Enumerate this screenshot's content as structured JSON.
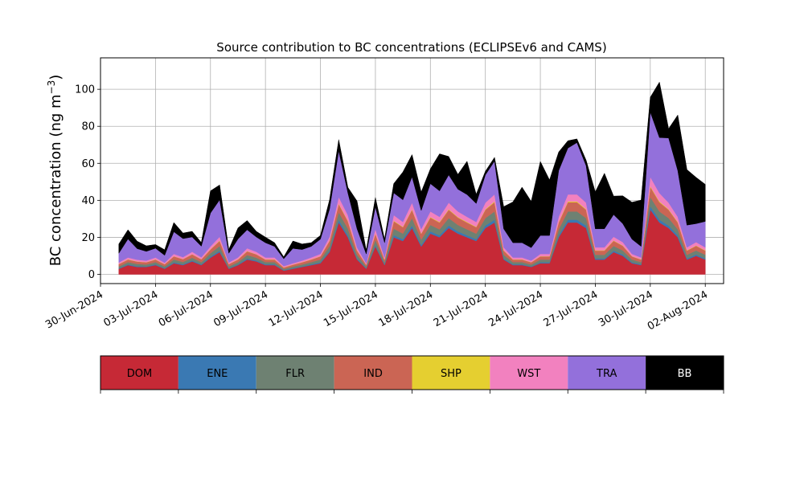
{
  "chart_data": {
    "type": "area",
    "stacked": true,
    "title": "Source contribution to BC concentrations (ECLIPSEv6 and CAMS)",
    "xlabel": "",
    "ylabel_text": "BC concentration (ng m",
    "ylabel_sup": "−3",
    "ylabel_close": ")",
    "ylim": [
      -5,
      117
    ],
    "yticks": [
      0,
      20,
      40,
      60,
      80,
      100
    ],
    "grid": true,
    "xlim": [
      "2024-06-30",
      "2024-08-03"
    ],
    "xticks": [
      "30-Jun-2024",
      "03-Jul-2024",
      "06-Jul-2024",
      "09-Jul-2024",
      "12-Jul-2024",
      "15-Jul-2024",
      "18-Jul-2024",
      "21-Jul-2024",
      "24-Jul-2024",
      "27-Jul-2024",
      "30-Jul-2024",
      "02-Aug-2024"
    ],
    "x": [
      "2024-07-01",
      "2024-07-01 12:00",
      "2024-07-02",
      "2024-07-02 12:00",
      "2024-07-03",
      "2024-07-03 12:00",
      "2024-07-04",
      "2024-07-04 12:00",
      "2024-07-05",
      "2024-07-05 12:00",
      "2024-07-06",
      "2024-07-06 12:00",
      "2024-07-07",
      "2024-07-07 12:00",
      "2024-07-08",
      "2024-07-08 12:00",
      "2024-07-09",
      "2024-07-09 12:00",
      "2024-07-10",
      "2024-07-10 12:00",
      "2024-07-11",
      "2024-07-11 12:00",
      "2024-07-12",
      "2024-07-12 12:00",
      "2024-07-13",
      "2024-07-13 12:00",
      "2024-07-14",
      "2024-07-14 12:00",
      "2024-07-15",
      "2024-07-15 12:00",
      "2024-07-16",
      "2024-07-16 12:00",
      "2024-07-17",
      "2024-07-17 12:00",
      "2024-07-18",
      "2024-07-18 12:00",
      "2024-07-19",
      "2024-07-19 12:00",
      "2024-07-20",
      "2024-07-20 12:00",
      "2024-07-21",
      "2024-07-21 12:00",
      "2024-07-22",
      "2024-07-22 12:00",
      "2024-07-23",
      "2024-07-23 12:00",
      "2024-07-24",
      "2024-07-24 12:00",
      "2024-07-25",
      "2024-07-25 12:00",
      "2024-07-26",
      "2024-07-26 12:00",
      "2024-07-27",
      "2024-07-27 12:00",
      "2024-07-28",
      "2024-07-28 12:00",
      "2024-07-29",
      "2024-07-29 12:00",
      "2024-07-30",
      "2024-07-30 12:00",
      "2024-07-31",
      "2024-07-31 12:00",
      "2024-08-01",
      "2024-08-01 12:00",
      "2024-08-02"
    ],
    "series": [
      {
        "name": "DOM",
        "color": "#c62936",
        "values": [
          3,
          5,
          4,
          4,
          5,
          3,
          6,
          5,
          7,
          5,
          9,
          12,
          3,
          5,
          8,
          7,
          5,
          5,
          2,
          3,
          4,
          5,
          6,
          12,
          28,
          20,
          8,
          3,
          15,
          5,
          20,
          18,
          25,
          15,
          22,
          20,
          25,
          22,
          20,
          18,
          25,
          28,
          8,
          5,
          5,
          4,
          6,
          6,
          20,
          28,
          28,
          25,
          8,
          8,
          12,
          10,
          6,
          5,
          35,
          28,
          25,
          20,
          8,
          10,
          8
        ]
      },
      {
        "name": "ENE",
        "color": "#3a79b3",
        "values": [
          0.3,
          0.4,
          0.4,
          0.3,
          0.4,
          0.3,
          0.5,
          0.4,
          0.5,
          0.4,
          0.6,
          0.8,
          0.3,
          0.4,
          0.6,
          0.5,
          0.4,
          0.4,
          0.2,
          0.3,
          0.3,
          0.4,
          0.5,
          0.8,
          1.5,
          1.2,
          0.6,
          0.3,
          0.9,
          0.4,
          1.2,
          1.0,
          1.4,
          0.9,
          1.2,
          1.1,
          1.4,
          1.2,
          1.1,
          1.0,
          1.4,
          1.5,
          0.6,
          0.4,
          0.4,
          0.3,
          0.5,
          0.5,
          1.1,
          1.5,
          1.5,
          1.4,
          0.6,
          0.6,
          0.8,
          0.7,
          0.5,
          0.4,
          1.8,
          1.5,
          1.4,
          1.1,
          0.6,
          0.7,
          0.6
        ]
      },
      {
        "name": "FLR",
        "color": "#6e8172",
        "values": [
          1.0,
          1.2,
          1.2,
          1.0,
          1.2,
          1.0,
          1.5,
          1.3,
          1.5,
          1.2,
          1.8,
          2.5,
          1.0,
          1.2,
          1.8,
          1.5,
          1.2,
          1.2,
          0.7,
          0.9,
          1.0,
          1.2,
          1.5,
          2.5,
          4.0,
          3.5,
          2.0,
          0.9,
          2.8,
          1.2,
          3.5,
          3.0,
          4.0,
          2.8,
          3.5,
          3.2,
          4.0,
          3.5,
          3.2,
          3.0,
          4.0,
          4.5,
          2.0,
          1.2,
          1.2,
          1.0,
          1.5,
          1.5,
          3.2,
          4.5,
          4.5,
          4.0,
          2.0,
          2.0,
          2.5,
          2.2,
          1.5,
          1.2,
          5.0,
          4.5,
          4.0,
          3.2,
          2.0,
          2.2,
          2.0
        ]
      },
      {
        "name": "IND",
        "color": "#cb6554",
        "values": [
          1.2,
          1.4,
          1.3,
          1.2,
          1.4,
          1.1,
          1.7,
          1.5,
          1.8,
          1.5,
          2.0,
          2.8,
          1.2,
          1.4,
          2.0,
          1.8,
          1.4,
          1.4,
          0.8,
          1.0,
          1.2,
          1.4,
          1.7,
          2.8,
          4.5,
          4.0,
          2.2,
          1.0,
          3.2,
          1.4,
          4.0,
          3.5,
          4.5,
          3.2,
          4.0,
          3.7,
          4.5,
          4.0,
          3.7,
          3.5,
          4.5,
          5.0,
          2.2,
          1.4,
          1.4,
          1.2,
          1.7,
          1.7,
          3.7,
          5.0,
          5.0,
          4.5,
          2.2,
          2.2,
          2.8,
          2.5,
          1.7,
          1.4,
          5.5,
          5.0,
          4.5,
          3.7,
          2.2,
          2.5,
          2.2
        ]
      },
      {
        "name": "SHP",
        "color": "#e5cf30",
        "values": [
          0.1,
          0.1,
          0.1,
          0.1,
          0.1,
          0.1,
          0.1,
          0.1,
          0.1,
          0.1,
          0.2,
          0.2,
          0.1,
          0.1,
          0.2,
          0.1,
          0.1,
          0.1,
          0.1,
          0.1,
          0.1,
          0.1,
          0.1,
          0.2,
          0.3,
          0.3,
          0.2,
          0.1,
          0.2,
          0.1,
          0.3,
          0.2,
          0.3,
          0.2,
          0.3,
          0.3,
          0.3,
          0.3,
          0.3,
          0.2,
          0.3,
          0.4,
          0.2,
          0.1,
          0.1,
          0.1,
          0.1,
          0.1,
          0.3,
          0.4,
          0.4,
          0.3,
          0.2,
          0.2,
          0.2,
          0.2,
          0.1,
          0.1,
          0.4,
          0.4,
          0.3,
          0.3,
          0.2,
          0.2,
          0.2
        ]
      },
      {
        "name": "WST",
        "color": "#f281bf",
        "values": [
          0.8,
          1.0,
          0.9,
          0.8,
          1.0,
          0.8,
          1.2,
          1.0,
          1.3,
          1.0,
          1.5,
          2.0,
          0.8,
          1.0,
          1.5,
          1.3,
          1.0,
          1.0,
          0.6,
          0.7,
          0.8,
          1.0,
          1.2,
          2.0,
          3.5,
          3.0,
          1.6,
          0.7,
          2.4,
          1.0,
          3.0,
          2.6,
          3.5,
          2.4,
          3.0,
          2.8,
          3.5,
          3.0,
          2.8,
          2.6,
          3.5,
          3.8,
          1.6,
          1.0,
          1.0,
          0.8,
          1.2,
          1.2,
          2.8,
          3.8,
          3.8,
          3.5,
          1.6,
          1.6,
          2.0,
          1.8,
          1.2,
          1.0,
          5.0,
          4.5,
          3.5,
          2.8,
          1.6,
          1.8,
          1.6
        ]
      },
      {
        "name": "TRA",
        "color": "#9370db",
        "values": [
          5,
          10,
          6,
          5,
          5,
          4,
          12,
          10,
          8,
          6,
          18,
          20,
          5,
          10,
          10,
          8,
          8,
          6,
          4,
          8,
          6,
          6,
          8,
          15,
          25,
          12,
          10,
          5,
          12,
          8,
          12,
          12,
          14,
          10,
          15,
          14,
          15,
          12,
          12,
          10,
          15,
          18,
          10,
          8,
          8,
          7,
          10,
          10,
          25,
          25,
          28,
          20,
          10,
          10,
          12,
          10,
          8,
          6,
          35,
          30,
          35,
          25,
          12,
          10,
          14
        ]
      },
      {
        "name": "BB",
        "color": "#000000",
        "values": [
          5,
          5,
          4,
          3,
          2,
          3,
          5,
          3,
          3,
          2,
          12,
          8,
          2,
          6,
          5,
          3,
          3,
          2,
          1,
          4,
          3,
          2,
          2,
          5,
          6,
          3,
          15,
          2,
          5,
          2,
          5,
          15,
          12,
          10,
          8,
          20,
          10,
          8,
          18,
          5,
          2,
          2,
          12,
          22,
          30,
          25,
          40,
          30,
          10,
          4,
          2,
          3,
          20,
          30,
          10,
          15,
          20,
          25,
          8,
          30,
          5,
          30,
          30,
          25,
          20
        ]
      }
    ],
    "legend": {
      "placement": "below",
      "entries": [
        {
          "label": "DOM",
          "color": "#c62936",
          "text_color": "#000000"
        },
        {
          "label": "ENE",
          "color": "#3a79b3",
          "text_color": "#000000"
        },
        {
          "label": "FLR",
          "color": "#6e8172",
          "text_color": "#000000"
        },
        {
          "label": "IND",
          "color": "#cb6554",
          "text_color": "#000000"
        },
        {
          "label": "SHP",
          "color": "#e5cf30",
          "text_color": "#000000"
        },
        {
          "label": "WST",
          "color": "#f281bf",
          "text_color": "#000000"
        },
        {
          "label": "TRA",
          "color": "#9370db",
          "text_color": "#000000"
        },
        {
          "label": "BB",
          "color": "#000000",
          "text_color": "#ffffff"
        }
      ]
    }
  }
}
